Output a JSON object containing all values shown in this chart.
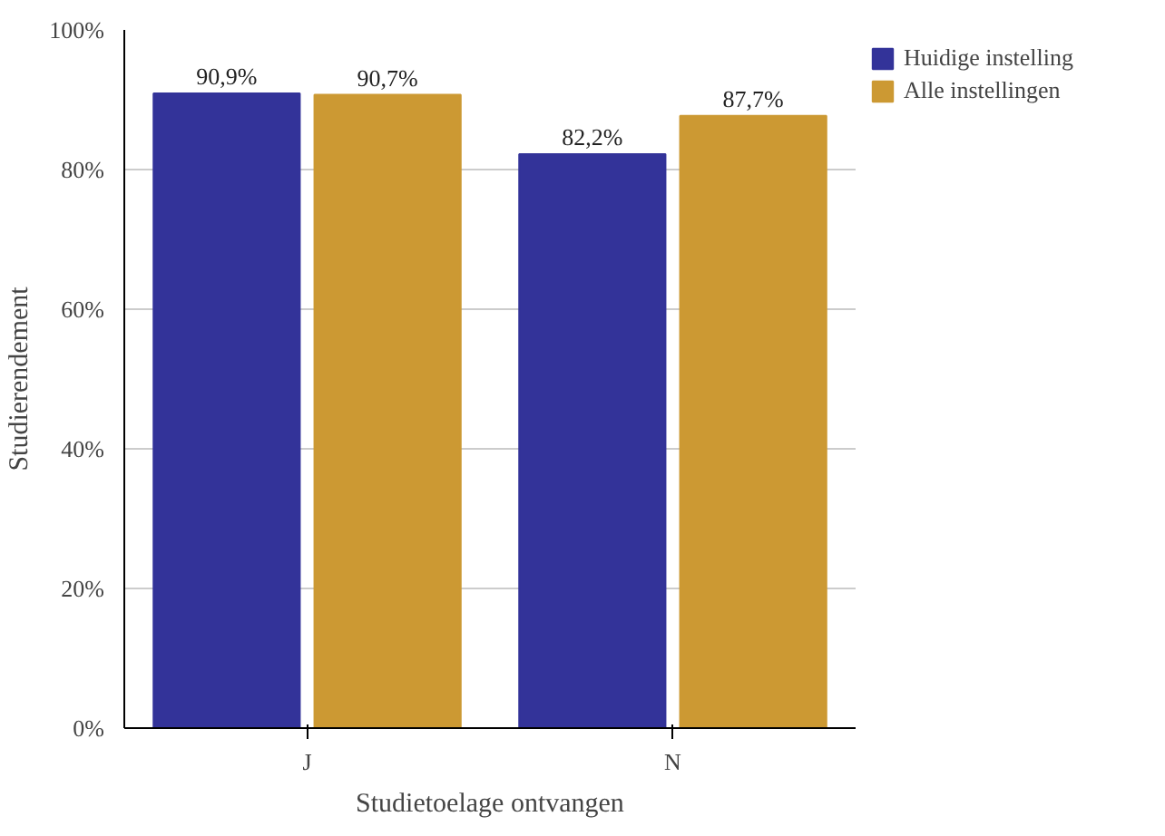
{
  "chart_data": {
    "type": "bar",
    "xlabel": "Studietoelage ontvangen",
    "ylabel": "Studierendement",
    "categories": [
      "J",
      "N"
    ],
    "series": [
      {
        "name": "Huidige instelling",
        "color": "#333399",
        "values": [
          90.9,
          82.2
        ],
        "value_labels": [
          "90,9%",
          "82,2%"
        ]
      },
      {
        "name": "Alle instellingen",
        "color": "#cc9933",
        "values": [
          90.7,
          87.7
        ],
        "value_labels": [
          "90,7%",
          "87,7%"
        ]
      }
    ],
    "ylim": [
      0,
      100
    ],
    "yticks": [
      {
        "value": 0,
        "label": "0%"
      },
      {
        "value": 20,
        "label": "20%"
      },
      {
        "value": 40,
        "label": "40%"
      },
      {
        "value": 60,
        "label": "60%"
      },
      {
        "value": 80,
        "label": "80%"
      },
      {
        "value": 100,
        "label": "100%"
      }
    ],
    "grid": "y",
    "legend": "top right"
  }
}
